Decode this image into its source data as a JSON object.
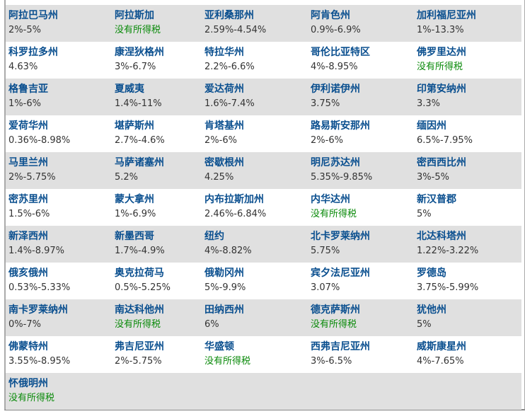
{
  "colors": {
    "name": "#0a4f8f",
    "value": "#333333",
    "no_tax": "#0a8a0a",
    "alt_row": "#e0e0e0"
  },
  "states": [
    {
      "name": "阿拉巴马州",
      "rate": "2%-5%"
    },
    {
      "name": "阿拉斯加",
      "rate": "没有所得税"
    },
    {
      "name": "亚利桑那州",
      "rate": "2.59%-4.54%"
    },
    {
      "name": "阿肯色州",
      "rate": "0.9%-6.9%"
    },
    {
      "name": "加利福尼亚州",
      "rate": "1%-13.3%"
    },
    {
      "name": "科罗拉多州",
      "rate": "4.63%"
    },
    {
      "name": "康涅狄格州",
      "rate": "3%-6.7%"
    },
    {
      "name": "特拉华州",
      "rate": "2.2%-6.6%"
    },
    {
      "name": "哥伦比亚特区",
      "rate": "4%-8.95%"
    },
    {
      "name": "佛罗里达州",
      "rate": "没有所得税"
    },
    {
      "name": "格鲁吉亚",
      "rate": "1%-6%"
    },
    {
      "name": "夏威夷",
      "rate": "1.4%-11%"
    },
    {
      "name": "爱达荷州",
      "rate": "1.6%-7.4%"
    },
    {
      "name": "伊利诺伊州",
      "rate": "3.75%"
    },
    {
      "name": "印第安纳州",
      "rate": "3.3%"
    },
    {
      "name": "爱荷华州",
      "rate": "0.36%-8.98%"
    },
    {
      "name": "堪萨斯州",
      "rate": "2.7%-4.6%"
    },
    {
      "name": "肯塔基州",
      "rate": "2%-6%"
    },
    {
      "name": "路易斯安那州",
      "rate": "2%-6%"
    },
    {
      "name": "缅因州",
      "rate": "6.5%-7.95%"
    },
    {
      "name": "马里兰州",
      "rate": "2%-5.75%"
    },
    {
      "name": "马萨诸塞州",
      "rate": "5.2%"
    },
    {
      "name": "密歇根州",
      "rate": "4.25%"
    },
    {
      "name": "明尼苏达州",
      "rate": "5.35%-9.85%"
    },
    {
      "name": "密西西比州",
      "rate": "3%-5%"
    },
    {
      "name": "密苏里州",
      "rate": "1.5%-6%"
    },
    {
      "name": "蒙大拿州",
      "rate": "1%-6.9%"
    },
    {
      "name": "内布拉斯加州",
      "rate": "2.46%-6.84%"
    },
    {
      "name": "内华达州",
      "rate": "没有所得税"
    },
    {
      "name": "新汉普郡",
      "rate": "5%"
    },
    {
      "name": "新泽西州",
      "rate": "1.4%-8.97%"
    },
    {
      "name": "新墨西哥",
      "rate": "1.7%-4.9%"
    },
    {
      "name": "纽约",
      "rate": "4%-8.82%"
    },
    {
      "name": "北卡罗莱纳州",
      "rate": "5.75%"
    },
    {
      "name": "北达科塔州",
      "rate": "1.22%-3.22%"
    },
    {
      "name": "俄亥俄州",
      "rate": "0.53%-5.33%"
    },
    {
      "name": "奥克拉荷马",
      "rate": "0.5%-5.25%"
    },
    {
      "name": "俄勒冈州",
      "rate": "5%-9.9%"
    },
    {
      "name": "宾夕法尼亚州",
      "rate": "3.07%"
    },
    {
      "name": "罗德岛",
      "rate": "3.75%-5.99%"
    },
    {
      "name": "南卡罗莱纳州",
      "rate": "0%-7%"
    },
    {
      "name": "南达科他州",
      "rate": "没有所得税"
    },
    {
      "name": "田纳西州",
      "rate": "6%"
    },
    {
      "name": "德克萨斯州",
      "rate": "没有所得税"
    },
    {
      "name": "犹他州",
      "rate": "5%"
    },
    {
      "name": "佛蒙特州",
      "rate": "3.55%-8.95%"
    },
    {
      "name": "弗吉尼亚州",
      "rate": "2%-5.75%"
    },
    {
      "name": "华盛顿",
      "rate": "没有所得税"
    },
    {
      "name": "西弗吉尼亚州",
      "rate": "3%-6.5%"
    },
    {
      "name": "威斯康星州",
      "rate": "4%-7.65%"
    },
    {
      "name": "怀俄明州",
      "rate": "没有所得税"
    }
  ],
  "no_tax_label": "没有所得税"
}
